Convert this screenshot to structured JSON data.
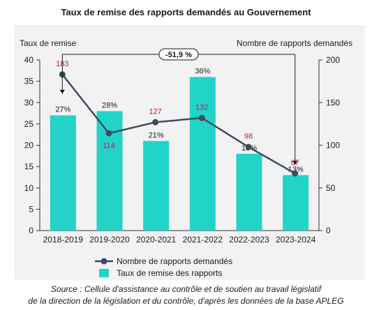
{
  "chart_data": {
    "type": "bar",
    "title": "Taux de remise des rapports demandés au Gouvernement",
    "ylabel_left": "Taux de remise",
    "ylabel_right": "Nombre de rapports demandés",
    "categories": [
      "2018-2019",
      "2019-2020",
      "2020-2021",
      "2021-2022",
      "2022-2023",
      "2023-2024"
    ],
    "left_axis": {
      "min": 0,
      "max": 40,
      "ticks": [
        0,
        5,
        10,
        15,
        20,
        25,
        30,
        35,
        40
      ]
    },
    "right_axis": {
      "min": 0,
      "max": 200,
      "ticks": [
        0,
        50,
        100,
        150,
        200
      ]
    },
    "series": [
      {
        "name": "Nombre de rapports demandés",
        "type": "line",
        "axis": "right",
        "color": "#3d4b63",
        "label_color": "#c2185b",
        "values": [
          183,
          114,
          127,
          132,
          98,
          67
        ]
      },
      {
        "name": "Taux de remise des rapports",
        "type": "bar",
        "axis": "left",
        "color": "#22d3c8",
        "values": [
          27,
          28,
          21,
          36,
          18,
          13
        ],
        "labels": [
          "27%",
          "28%",
          "21%",
          "36%",
          "18%",
          "13%"
        ]
      }
    ],
    "annotation": "-51,9 %",
    "legend_position": "bottom",
    "grid": false
  },
  "source_line1": "Source : Cellule d'assistance au contrôle et de soutien au travail législatif",
  "source_line2": "de la direction de la législation et du contrôle, d'après les données de la base APLEG"
}
